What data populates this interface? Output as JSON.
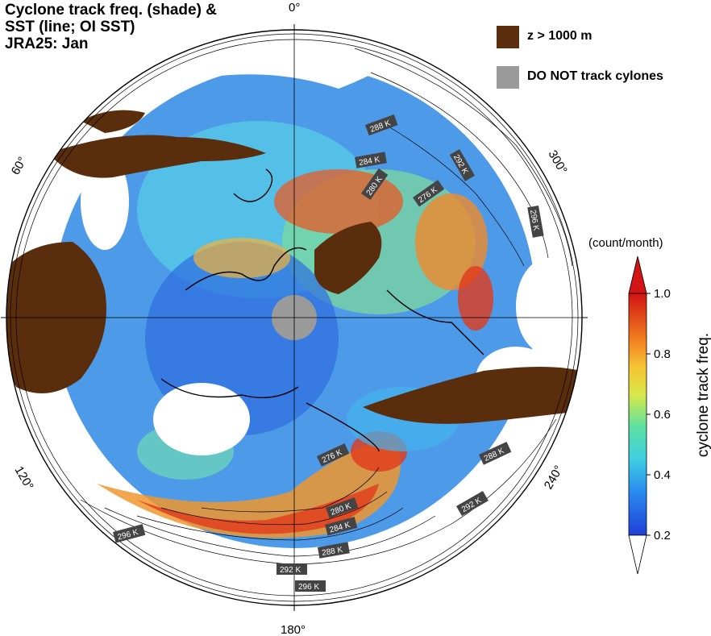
{
  "title": {
    "line1": "Cyclone track freq. (shade) &",
    "line2": "SST (line; OI SST)",
    "line3": "JRA25: Jan"
  },
  "legend": {
    "items": [
      {
        "label": "z > 1000 m",
        "color": "#5a2e0c"
      },
      {
        "label": "DO NOT track cylones",
        "color": "#9a9a9a"
      }
    ]
  },
  "longitude_labels": [
    "0°",
    "60°",
    "300°",
    "120°",
    "240°",
    "180°"
  ],
  "sst_contour_labels": [
    "288 K",
    "284 K",
    "280 K",
    "276 K",
    "292 K",
    "296 K",
    "276 K",
    "288 K",
    "280 K",
    "284 K",
    "292 K",
    "288 K",
    "296 K",
    "292 K",
    "296 K"
  ],
  "colorbar": {
    "unit": "(count/month)",
    "label": "cyclone track freq.",
    "ticks": [
      {
        "value": 1.0,
        "label": "1.0"
      },
      {
        "value": 0.8,
        "label": "0.8"
      },
      {
        "value": 0.6,
        "label": "0.6"
      },
      {
        "value": 0.4,
        "label": "0.4"
      },
      {
        "value": 0.2,
        "label": "0.2"
      }
    ],
    "range": [
      0.2,
      1.0
    ]
  },
  "colors": {
    "land": "#5a2e0c",
    "pole_mask": "#9a9a9a",
    "freq_low": "#2a6be0",
    "freq_mid": "#3fd6c8",
    "freq_high": "#f0d23a",
    "freq_max": "#e03a1c"
  }
}
